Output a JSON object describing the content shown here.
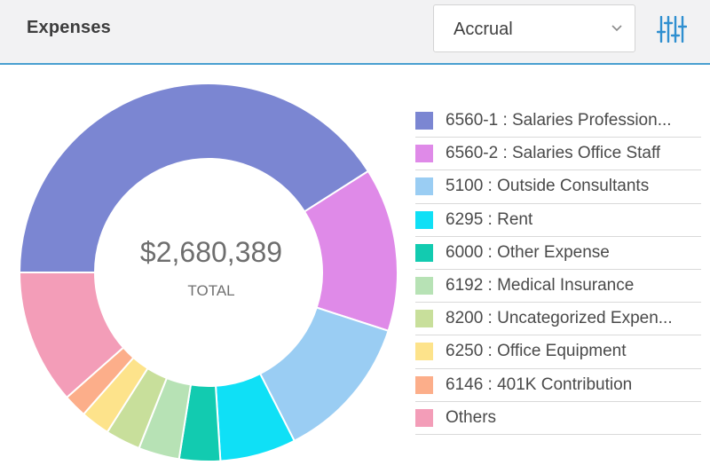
{
  "header": {
    "title": "Expenses",
    "basis_select": {
      "value": "Accrual"
    }
  },
  "icons": {
    "dropdown": "chevron-down-icon",
    "filter": "sliders-icon"
  },
  "colors": {
    "accent": "#4a9fd0",
    "header_bg": "#f2f2f3"
  },
  "center": {
    "total": "$2,680,389",
    "label": "TOTAL"
  },
  "chart_data": {
    "type": "pie",
    "style": "donut",
    "total": 2680389,
    "series": [
      {
        "name": "6560-1 : Salaries Profession...",
        "percent": 41.0,
        "color": "#7b86d2"
      },
      {
        "name": "6560-2 : Salaries Office Staff",
        "percent": 14.0,
        "color": "#df8ae8"
      },
      {
        "name": "5100 : Outside Consultants",
        "percent": 12.5,
        "color": "#9acdf3"
      },
      {
        "name": "6295 : Rent",
        "percent": 6.5,
        "color": "#0fe0f6"
      },
      {
        "name": "6000 : Other Expense",
        "percent": 3.5,
        "color": "#12cbb0"
      },
      {
        "name": "6192 : Medical Insurance",
        "percent": 3.5,
        "color": "#b7e2b5"
      },
      {
        "name": "8200 : Uncategorized Expen...",
        "percent": 3.0,
        "color": "#c8df9b"
      },
      {
        "name": "6250 : Office Equipment",
        "percent": 2.5,
        "color": "#fde38b"
      },
      {
        "name": "6146 : 401K Contribution",
        "percent": 2.0,
        "color": "#fcae8a"
      },
      {
        "name": "Others",
        "percent": 11.5,
        "color": "#f39db8"
      }
    ]
  }
}
